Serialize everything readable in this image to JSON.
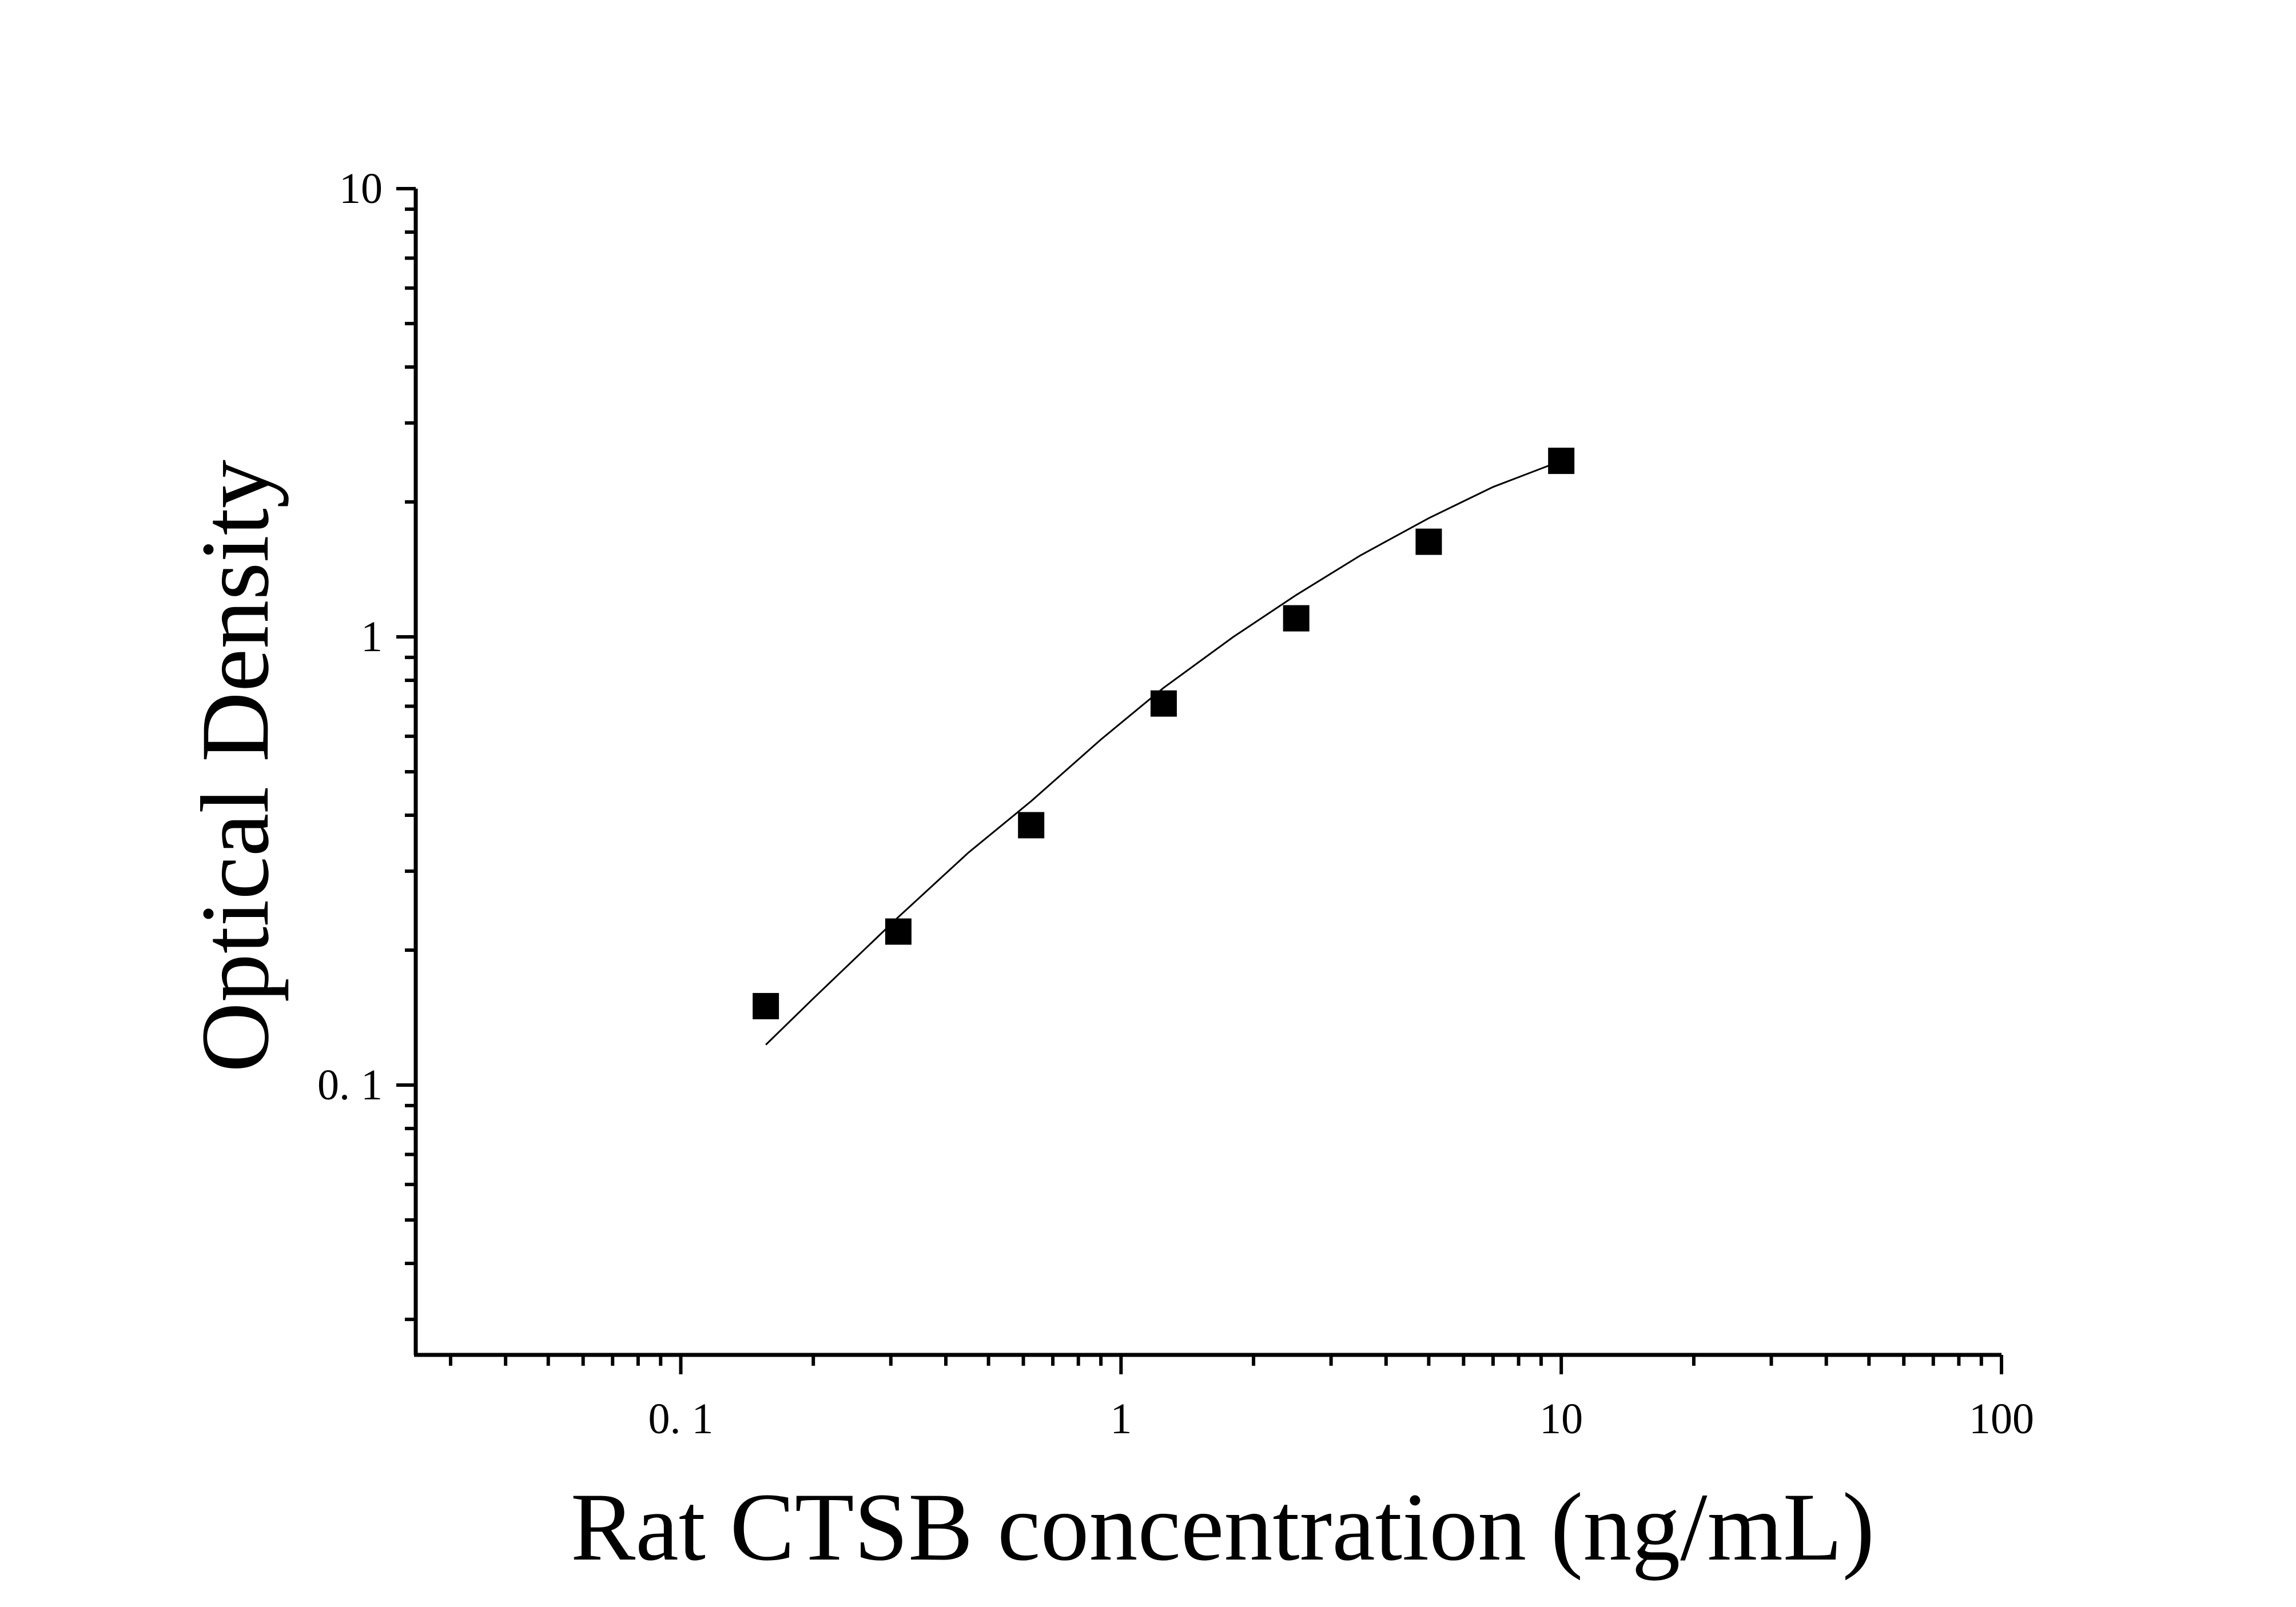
{
  "chart_data": {
    "type": "scatter",
    "title": "",
    "xlabel": "Rat CTSB concentration (ng/mL)",
    "ylabel": "Optical Density",
    "x_scale": "log",
    "y_scale": "log",
    "xlim": [
      0.025,
      100
    ],
    "ylim": [
      0.025,
      10
    ],
    "x_ticks": [
      {
        "value": 0.1,
        "label": "0. 1"
      },
      {
        "value": 1,
        "label": "1"
      },
      {
        "value": 10,
        "label": "10"
      },
      {
        "value": 100,
        "label": "100"
      }
    ],
    "y_ticks": [
      {
        "value": 0.1,
        "label": "0. 1"
      },
      {
        "value": 1,
        "label": "1"
      },
      {
        "value": 10,
        "label": "10"
      }
    ],
    "grid": false,
    "legend": "none",
    "series": [
      {
        "marker": "square",
        "color": "#000000",
        "x": [
          0.156,
          0.312,
          0.625,
          1.25,
          2.5,
          5,
          10
        ],
        "y": [
          0.15,
          0.22,
          0.38,
          0.71,
          1.1,
          1.63,
          2.47
        ]
      }
    ],
    "fit_curve": {
      "style": "thin solid line",
      "color": "#000000",
      "x": [
        0.156,
        0.2,
        0.312,
        0.45,
        0.625,
        0.9,
        1.25,
        1.8,
        2.5,
        3.5,
        5,
        7,
        10
      ],
      "y": [
        0.123,
        0.156,
        0.237,
        0.33,
        0.43,
        0.59,
        0.77,
        1.0,
        1.24,
        1.52,
        1.84,
        2.16,
        2.47
      ]
    }
  }
}
